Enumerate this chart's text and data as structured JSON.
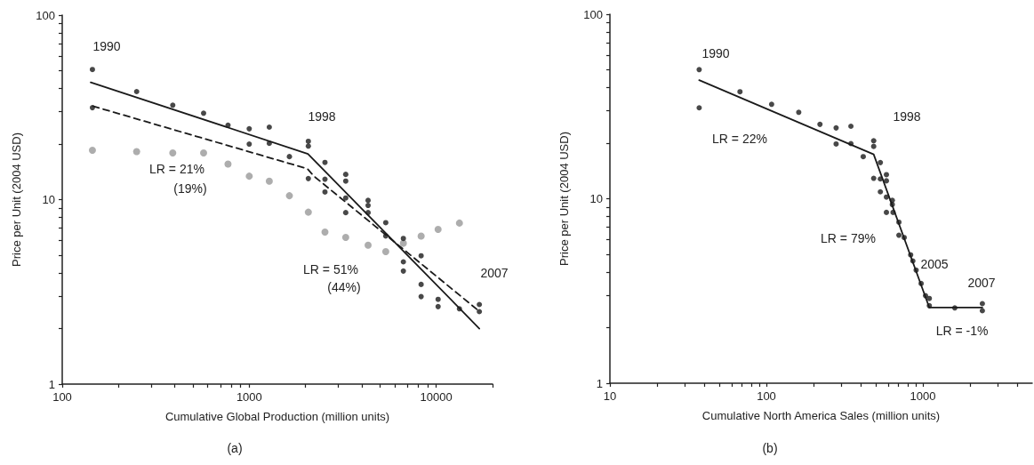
{
  "chart_data": [
    {
      "type": "scatter",
      "xlabel": "Cumulative Global Production (million units)",
      "ylabel": "Price per Unit (2004 USD)",
      "log": "xy",
      "xlim": [
        100,
        20000
      ],
      "ylim": [
        1,
        100
      ],
      "xticks": [
        100,
        {
          "value": 200,
          "label": null
        },
        {
          "value": 300,
          "label": null
        },
        {
          "value": 400,
          "label": null
        },
        {
          "value": 500,
          "label": null
        },
        {
          "value": 600,
          "label": null
        },
        {
          "value": 700,
          "label": null
        },
        {
          "value": 800,
          "label": null
        },
        {
          "value": 900,
          "label": null
        },
        1000,
        {
          "value": 2000,
          "label": null
        },
        {
          "value": 3000,
          "label": null
        },
        {
          "value": 4000,
          "label": null
        },
        {
          "value": 5000,
          "label": null
        },
        {
          "value": 6000,
          "label": null
        },
        {
          "value": 7000,
          "label": null
        },
        {
          "value": 8000,
          "label": null
        },
        {
          "value": 9000,
          "label": null
        },
        10000,
        {
          "value": 20000,
          "label": null
        }
      ],
      "yticks": [
        1,
        {
          "value": 2,
          "label": null
        },
        {
          "value": 3,
          "label": null
        },
        {
          "value": 4,
          "label": null
        },
        {
          "value": 5,
          "label": null
        },
        {
          "value": 6,
          "label": null
        },
        {
          "value": 7,
          "label": null
        },
        {
          "value": 8,
          "label": null
        },
        {
          "value": 9,
          "label": null
        },
        10,
        {
          "value": 20,
          "label": null
        },
        {
          "value": 30,
          "label": null
        },
        {
          "value": 40,
          "label": null
        },
        {
          "value": 50,
          "label": null
        },
        {
          "value": 60,
          "label": null
        },
        {
          "value": 70,
          "label": null
        },
        {
          "value": 80,
          "label": null
        },
        {
          "value": 90,
          "label": null
        },
        100
      ],
      "series": [
        {
          "type": "scatter",
          "color": "#999999",
          "marker": "circle",
          "x": [
            145,
            250,
            390,
            570,
            770,
            1000,
            1280,
            1640,
            2070,
            2540,
            3280,
            4320,
            5370,
            6670,
            8300,
            10230,
            13300
          ],
          "values": [
            18.5,
            18.2,
            17.9,
            17.9,
            15.6,
            13.4,
            12.6,
            10.5,
            8.55,
            6.67,
            6.24,
            5.66,
            5.22,
            5.8,
            6.35,
            6.9,
            7.46
          ]
        },
        {
          "type": "scatter",
          "color": "#1a1a1a",
          "marker": "circle",
          "x": [
            145,
            145,
            250,
            390,
            570,
            770,
            1000,
            1000,
            1280,
            1280,
            1640,
            2070,
            2070,
            2070,
            2540,
            2540,
            2540,
            3280,
            3280,
            3280,
            3280,
            4320,
            4320,
            4320,
            5370,
            5370,
            6670,
            6670,
            6670,
            8300,
            8300,
            8300,
            10230,
            10230,
            13300,
            17000,
            17000
          ],
          "values": [
            50.7,
            31.5,
            38.5,
            32.5,
            29.4,
            25.3,
            24.2,
            20.0,
            24.7,
            20.2,
            17.1,
            20.7,
            19.5,
            13.0,
            15.9,
            12.9,
            11.0,
            13.7,
            12.6,
            10.2,
            8.5,
            9.9,
            9.3,
            8.5,
            7.5,
            6.35,
            6.16,
            4.6,
            4.1,
            4.96,
            3.47,
            2.98,
            2.88,
            2.63,
            2.56,
            2.7,
            2.47
          ]
        },
        {
          "type": "line",
          "color": "#1a1a1a",
          "marker": "none",
          "line_style": "solid",
          "x": [
            142,
            2060,
            17000
          ],
          "values": [
            43.2,
            17.7,
            2.0
          ]
        },
        {
          "type": "line",
          "color": "#1a1a1a",
          "marker": "none",
          "line_style": "dashed",
          "x": [
            146,
            2046,
            2217,
            17000
          ],
          "values": [
            32.1,
            14.7,
            13.4,
            2.48
          ]
        }
      ],
      "annotations": [
        "1990",
        "1998",
        "2007",
        "LR = 21%",
        "(19%)",
        "LR = 51%",
        "(44%)",
        "(a)"
      ]
    },
    {
      "type": "scatter",
      "xlabel": "Cumulative North America Sales (million units)",
      "ylabel": "Price per Unit (2004 USD)",
      "log": "xy",
      "xlim": [
        10,
        5000
      ],
      "ylim": [
        1,
        100
      ],
      "xticks": [
        10,
        {
          "value": 20,
          "label": null
        },
        {
          "value": 30,
          "label": null
        },
        {
          "value": 40,
          "label": null
        },
        {
          "value": 50,
          "label": null
        },
        {
          "value": 60,
          "label": null
        },
        {
          "value": 70,
          "label": null
        },
        {
          "value": 80,
          "label": null
        },
        {
          "value": 90,
          "label": null
        },
        100,
        {
          "value": 200,
          "label": null
        },
        {
          "value": 300,
          "label": null
        },
        {
          "value": 400,
          "label": null
        },
        {
          "value": 500,
          "label": null
        },
        {
          "value": 600,
          "label": null
        },
        {
          "value": 700,
          "label": null
        },
        {
          "value": 800,
          "label": null
        },
        {
          "value": 900,
          "label": null
        },
        1000,
        {
          "value": 2000,
          "label": null
        },
        {
          "value": 3000,
          "label": null
        },
        {
          "value": 4000,
          "label": null
        }
      ],
      "yticks": [
        1,
        {
          "value": 2,
          "label": null
        },
        {
          "value": 3,
          "label": null
        },
        {
          "value": 4,
          "label": null
        },
        {
          "value": 5,
          "label": null
        },
        {
          "value": 6,
          "label": null
        },
        {
          "value": 7,
          "label": null
        },
        {
          "value": 8,
          "label": null
        },
        {
          "value": 9,
          "label": null
        },
        10,
        {
          "value": 20,
          "label": null
        },
        {
          "value": 30,
          "label": null
        },
        {
          "value": 40,
          "label": null
        },
        {
          "value": 50,
          "label": null
        },
        {
          "value": 60,
          "label": null
        },
        {
          "value": 70,
          "label": null
        },
        {
          "value": 80,
          "label": null
        },
        {
          "value": 90,
          "label": null
        },
        100
      ],
      "series": [
        {
          "type": "scatter",
          "color": "#1a1a1a",
          "marker": "circle",
          "x": [
            37.2,
            37.2,
            67.8,
            108,
            161,
            220,
            279,
            279,
            347,
            347,
            416,
            485,
            485,
            485,
            535,
            535,
            535,
            585,
            585,
            585,
            585,
            638,
            638,
            645,
            703,
            703,
            760,
            863,
            906,
            836,
            975,
            1040,
            1100,
            1100,
            1600,
            2400,
            2400
          ],
          "values": [
            50.1,
            31.1,
            38.0,
            32.5,
            29.4,
            25.3,
            24.2,
            19.8,
            24.7,
            19.9,
            16.9,
            20.6,
            19.2,
            12.9,
            15.7,
            12.8,
            10.9,
            13.5,
            12.5,
            10.2,
            8.43,
            9.8,
            9.3,
            8.43,
            7.46,
            6.34,
            6.16,
            4.6,
            4.1,
            4.96,
            3.47,
            2.98,
            2.88,
            2.63,
            2.56,
            2.7,
            2.47
          ]
        },
        {
          "type": "line",
          "color": "#1a1a1a",
          "marker": "none",
          "line_style": "solid",
          "x": [
            37.2,
            485,
            1100,
            2400
          ],
          "values": [
            43.9,
            17.4,
            2.57,
            2.57
          ]
        }
      ],
      "annotations": [
        "1990",
        "1998",
        "2005",
        "2007",
        "LR = 22%",
        "LR = 79%",
        "LR = -1%",
        "(b)"
      ]
    }
  ]
}
